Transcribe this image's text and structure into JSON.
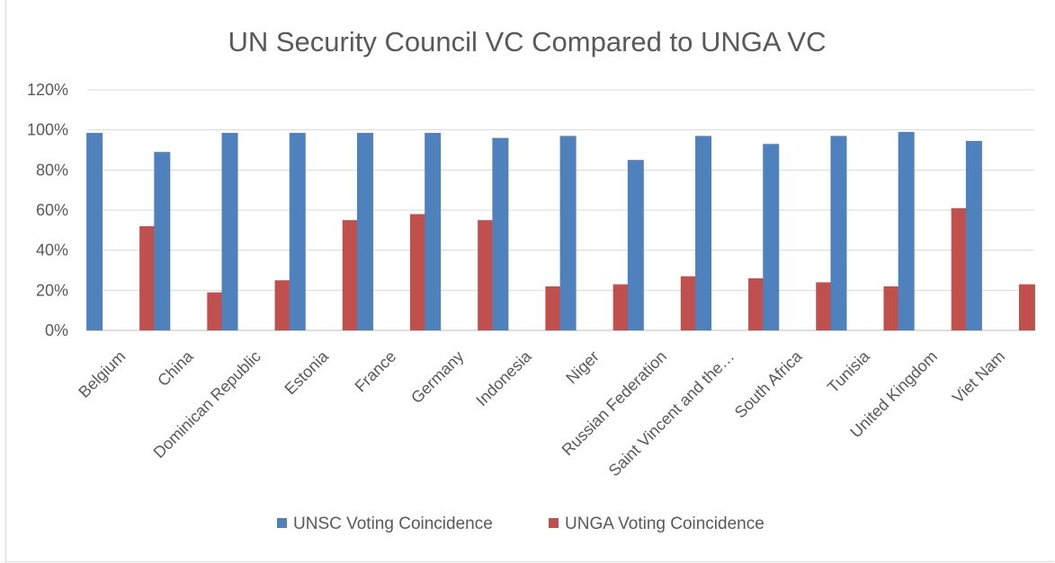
{
  "chart_data": {
    "type": "bar",
    "title": "UN Security Council VC Compared to UNGA VC",
    "xlabel": "",
    "ylabel": "",
    "ylim": [
      0,
      120
    ],
    "y_tick_format": "percent",
    "y_ticks": [
      "0%",
      "20%",
      "40%",
      "60%",
      "80%",
      "100%",
      "120%"
    ],
    "grid": true,
    "legend_position": "bottom",
    "categories": [
      "Belgium",
      "China",
      "Dominican Republic",
      "Estonia",
      "France",
      "Germany",
      "Indonesia",
      "Niger",
      "Russian Federation",
      "Saint Vincent and the…",
      "South Africa",
      "Tunisia",
      "United Kingdom",
      "Viet Nam"
    ],
    "series": [
      {
        "name": "UNSC Voting Coincidence",
        "color": "#4f81bd",
        "values": [
          98.5,
          89,
          98.5,
          98.5,
          98.5,
          98.5,
          96,
          97,
          85,
          97,
          93,
          97,
          99,
          94.5
        ]
      },
      {
        "name": "UNGA Voting Coincidence",
        "color": "#c0504d",
        "values": [
          52,
          19,
          25,
          55,
          58,
          55,
          22,
          23,
          27,
          26,
          24,
          22,
          61,
          23
        ]
      }
    ]
  }
}
